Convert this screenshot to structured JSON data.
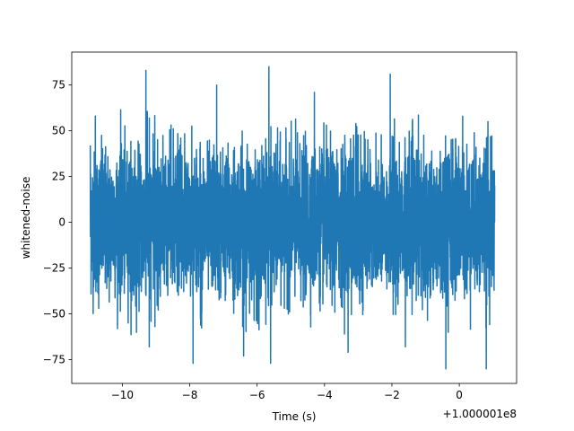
{
  "chart_data": {
    "type": "line",
    "title": "",
    "xlabel": "Time (s)",
    "ylabel": "whitened-noise",
    "x_offset_label": "+1.000001e8",
    "xlim": [
      -11.5,
      1.7
    ],
    "ylim": [
      -88,
      93
    ],
    "x_range": [
      -10.95,
      1.05
    ],
    "x_ticks": [
      -10,
      -8,
      -6,
      -4,
      -2,
      0
    ],
    "x_tick_labels": [
      "−10",
      "−8",
      "−6",
      "−4",
      "−2",
      "0"
    ],
    "y_ticks": [
      -75,
      -50,
      -25,
      0,
      25,
      50,
      75
    ],
    "y_tick_labels": [
      "−75",
      "−50",
      "−25",
      "0",
      "25",
      "50",
      "75"
    ],
    "grid": false,
    "series": [
      {
        "color": "#1f77b4",
        "description_of_envelope": "",
        "sample_points_approx": [
          [
            -10.95,
            42
          ],
          [
            -10.95,
            -42
          ],
          [
            -10.8,
            58
          ],
          [
            -10.7,
            -47
          ],
          [
            -9.3,
            83
          ],
          [
            -9.2,
            -68
          ],
          [
            -7.9,
            -77
          ],
          [
            -7.2,
            75
          ],
          [
            -6.4,
            -73
          ],
          [
            -5.65,
            85
          ],
          [
            -5.6,
            -77
          ],
          [
            -4.3,
            71
          ],
          [
            -3.3,
            -71
          ],
          [
            -2.05,
            81
          ],
          [
            -1.6,
            -68
          ],
          [
            -0.4,
            -80
          ],
          [
            0.1,
            58
          ],
          [
            0.8,
            -80
          ],
          [
            0.85,
            55
          ],
          [
            1.05,
            20
          ]
        ]
      }
    ]
  }
}
